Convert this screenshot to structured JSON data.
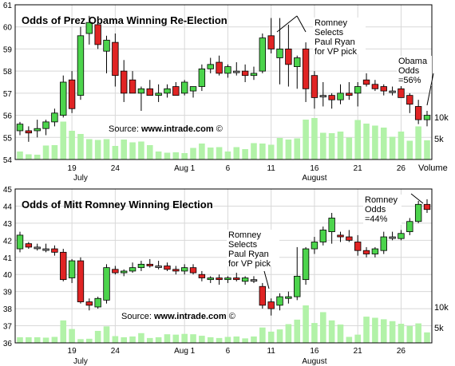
{
  "colors": {
    "up": "#4CD44C",
    "down": "#E02424",
    "neutral": "#9A9A9A",
    "volume": "#B2F2A8",
    "grid": "#D8D8D8",
    "frame": "#000000",
    "background": "#FFFFFF",
    "text": "#000000"
  },
  "chart_data": [
    {
      "type": "candlestick",
      "title": "Odds of Prez Obama Winning Re-Election",
      "source_label": "Source: ",
      "source_site": "www.intrade.com",
      "source_mark": "©",
      "ylim": [
        54,
        61
      ],
      "yticks": [
        54,
        55,
        56,
        57,
        58,
        59,
        60,
        61
      ],
      "xticks": [
        {
          "day": 19,
          "label": "19"
        },
        {
          "day": 24,
          "label": "24"
        },
        {
          "day": 32,
          "label": "Aug 1"
        },
        {
          "day": 37,
          "label": "6"
        },
        {
          "day": 42,
          "label": "11"
        },
        {
          "day": 47,
          "label": "16"
        },
        {
          "day": 52,
          "label": "21"
        },
        {
          "day": 57,
          "label": "26"
        }
      ],
      "month_labels": [
        {
          "day": 20,
          "label": "July"
        },
        {
          "day": 47,
          "label": "August"
        }
      ],
      "volume_axis_label": "Volume",
      "volume_ticks": [
        {
          "value": 10000,
          "label": "10k"
        },
        {
          "value": 5000,
          "label": "5k"
        }
      ],
      "annotations": [
        {
          "lines": [
            "Romney",
            "Selects",
            "Paul Ryan",
            "for VP pick"
          ],
          "target_day": 41
        },
        {
          "lines": [
            "Obama",
            "Odds",
            "=56%"
          ],
          "target_day": 57
        }
      ],
      "series": [
        {
          "day": 13,
          "open": 55.3,
          "high": 55.7,
          "low": 55.1,
          "close": 55.6,
          "volume": 2000
        },
        {
          "day": 14,
          "open": 55.3,
          "high": 55.5,
          "low": 54.8,
          "close": 55.2,
          "volume": 1300
        },
        {
          "day": 15,
          "open": 55.3,
          "high": 55.8,
          "low": 55.0,
          "close": 55.4,
          "volume": 1200
        },
        {
          "day": 16,
          "open": 55.4,
          "high": 55.8,
          "low": 55.1,
          "close": 55.7,
          "volume": 3500
        },
        {
          "day": 17,
          "open": 55.7,
          "high": 56.3,
          "low": 55.5,
          "close": 56.1,
          "volume": 3600
        },
        {
          "day": 18,
          "open": 56.0,
          "high": 57.8,
          "low": 55.9,
          "close": 57.5,
          "volume": 9500
        },
        {
          "day": 19,
          "open": 57.6,
          "high": 58.0,
          "low": 56.1,
          "close": 56.3,
          "volume": 7200
        },
        {
          "day": 20,
          "open": 56.9,
          "high": 60.0,
          "low": 56.7,
          "close": 59.6,
          "volume": 6400
        },
        {
          "day": 21,
          "open": 59.7,
          "high": 60.5,
          "low": 59.2,
          "close": 60.2,
          "volume": 5100
        },
        {
          "day": 22,
          "open": 60.1,
          "high": 60.4,
          "low": 59.0,
          "close": 59.2,
          "volume": 4900
        },
        {
          "day": 23,
          "open": 58.9,
          "high": 59.6,
          "low": 57.9,
          "close": 59.4,
          "volume": 5100
        },
        {
          "day": 24,
          "open": 59.3,
          "high": 59.7,
          "low": 57.3,
          "close": 57.8,
          "volume": 3400
        },
        {
          "day": 25,
          "open": 58.0,
          "high": 58.5,
          "low": 56.6,
          "close": 57.0,
          "volume": 5000
        },
        {
          "day": 26,
          "open": 57.6,
          "high": 58.0,
          "low": 57.0,
          "close": 57.0,
          "volume": 4300
        },
        {
          "day": 27,
          "open": 57.0,
          "high": 57.3,
          "low": 56.2,
          "close": 57.2,
          "volume": 4500
        },
        {
          "day": 28,
          "open": 57.2,
          "high": 57.6,
          "low": 56.9,
          "close": 56.9,
          "volume": 3600
        },
        {
          "day": 29,
          "open": 56.9,
          "high": 57.4,
          "low": 56.6,
          "close": 57.0,
          "volume": 2000
        },
        {
          "day": 30,
          "open": 57.0,
          "high": 57.4,
          "low": 56.8,
          "close": 57.2,
          "volume": 1700
        },
        {
          "day": 31,
          "open": 57.3,
          "high": 57.5,
          "low": 56.9,
          "close": 56.9,
          "volume": 1800
        },
        {
          "day": 32,
          "open": 57.0,
          "high": 57.6,
          "low": 56.9,
          "close": 57.5,
          "volume": 1600
        },
        {
          "day": 33,
          "open": 57.1,
          "high": 57.3,
          "low": 56.8,
          "close": 57.3,
          "volume": 2900
        },
        {
          "day": 34,
          "open": 57.3,
          "high": 58.3,
          "low": 57.1,
          "close": 58.1,
          "volume": 4000
        },
        {
          "day": 35,
          "open": 58.1,
          "high": 58.6,
          "low": 57.9,
          "close": 58.3,
          "volume": 3000
        },
        {
          "day": 36,
          "open": 58.4,
          "high": 58.7,
          "low": 57.8,
          "close": 57.9,
          "volume": 3100
        },
        {
          "day": 37,
          "open": 57.9,
          "high": 58.3,
          "low": 57.7,
          "close": 58.2,
          "volume": 2000
        },
        {
          "day": 38,
          "open": 58.0,
          "high": 58.4,
          "low": 57.8,
          "close": 58.0,
          "volume": 3100
        },
        {
          "day": 39,
          "open": 58.0,
          "high": 58.3,
          "low": 57.5,
          "close": 57.8,
          "volume": 2600
        },
        {
          "day": 40,
          "open": 57.8,
          "high": 58.2,
          "low": 57.6,
          "close": 57.9,
          "volume": 4100
        },
        {
          "day": 41,
          "open": 58.0,
          "high": 59.7,
          "low": 57.9,
          "close": 59.5,
          "volume": 4000
        },
        {
          "day": 42,
          "open": 59.6,
          "high": 60.4,
          "low": 58.8,
          "close": 59.0,
          "volume": 3700
        },
        {
          "day": 43,
          "open": 58.6,
          "high": 60.4,
          "low": 57.4,
          "close": 59.0,
          "volume": 5400
        },
        {
          "day": 44,
          "open": 59.0,
          "high": 60.1,
          "low": 57.3,
          "close": 58.3,
          "volume": 5000
        },
        {
          "day": 45,
          "open": 58.2,
          "high": 58.7,
          "low": 57.2,
          "close": 58.6,
          "volume": 5300
        },
        {
          "day": 46,
          "open": 59.0,
          "high": 59.3,
          "low": 56.6,
          "close": 57.2,
          "volume": 10000
        },
        {
          "day": 47,
          "open": 57.8,
          "high": 58.0,
          "low": 56.3,
          "close": 56.8,
          "volume": 10400
        },
        {
          "day": 48,
          "open": 56.9,
          "high": 57.5,
          "low": 56.4,
          "close": 56.9,
          "volume": 6700
        },
        {
          "day": 49,
          "open": 56.9,
          "high": 57.0,
          "low": 56.3,
          "close": 56.7,
          "volume": 6600
        },
        {
          "day": 50,
          "open": 56.7,
          "high": 57.4,
          "low": 56.5,
          "close": 57.0,
          "volume": 7000
        },
        {
          "day": 51,
          "open": 57.0,
          "high": 57.5,
          "low": 56.7,
          "close": 56.9,
          "volume": 5500
        },
        {
          "day": 52,
          "open": 57.0,
          "high": 57.5,
          "low": 56.4,
          "close": 57.3,
          "volume": 9900
        },
        {
          "day": 53,
          "open": 57.6,
          "high": 57.9,
          "low": 57.3,
          "close": 57.4,
          "volume": 9000
        },
        {
          "day": 54,
          "open": 57.4,
          "high": 57.6,
          "low": 57.1,
          "close": 57.2,
          "volume": 8500
        },
        {
          "day": 55,
          "open": 57.3,
          "high": 57.4,
          "low": 56.9,
          "close": 57.1,
          "volume": 8000
        },
        {
          "day": 56,
          "open": 57.1,
          "high": 57.3,
          "low": 56.9,
          "close": 57.1,
          "volume": 5700
        },
        {
          "day": 57,
          "open": 57.2,
          "high": 57.4,
          "low": 56.8,
          "close": 56.8,
          "volume": 7000
        },
        {
          "day": 58,
          "open": 56.9,
          "high": 57.0,
          "low": 56.1,
          "close": 56.5,
          "volume": 4700
        },
        {
          "day": 59,
          "open": 56.4,
          "high": 56.7,
          "low": 55.6,
          "close": 55.8,
          "volume": 8300
        },
        {
          "day": 60,
          "open": 55.8,
          "high": 56.2,
          "low": 55.5,
          "close": 56.0,
          "volume": 4800
        }
      ]
    },
    {
      "type": "candlestick",
      "title": "Odds of Mitt Romney Winning Election",
      "source_label": "Source: ",
      "source_site": "www.intrade.com",
      "source_mark": "©",
      "ylim": [
        36,
        45
      ],
      "yticks": [
        36,
        37,
        38,
        39,
        40,
        41,
        42,
        43,
        44,
        45
      ],
      "xticks": [
        {
          "day": 19,
          "label": "19"
        },
        {
          "day": 24,
          "label": "24"
        },
        {
          "day": 32,
          "label": "Aug 1"
        },
        {
          "day": 37,
          "label": "6"
        },
        {
          "day": 42,
          "label": "11"
        },
        {
          "day": 47,
          "label": "16"
        },
        {
          "day": 52,
          "label": "21"
        },
        {
          "day": 57,
          "label": "26"
        }
      ],
      "month_labels": [
        {
          "day": 20,
          "label": "July"
        },
        {
          "day": 47,
          "label": "August"
        }
      ],
      "volume_ticks": [
        {
          "value": 10000,
          "label": "10k"
        },
        {
          "value": 5000,
          "label": "5k"
        }
      ],
      "annotations": [
        {
          "lines": [
            "Romney",
            "Selects",
            "Paul Ryan",
            "for VP pick"
          ],
          "target_day": 41
        },
        {
          "lines": [
            "Romney",
            "Odds",
            "=44%"
          ],
          "target_day": 59
        }
      ],
      "series": [
        {
          "day": 13,
          "open": 41.5,
          "high": 42.5,
          "low": 41.3,
          "close": 42.3,
          "volume": 1500
        },
        {
          "day": 14,
          "open": 41.8,
          "high": 41.9,
          "low": 41.5,
          "close": 41.6,
          "volume": 1500
        },
        {
          "day": 15,
          "open": 41.6,
          "high": 41.8,
          "low": 41.4,
          "close": 41.6,
          "volume": 1500
        },
        {
          "day": 16,
          "open": 41.5,
          "high": 41.8,
          "low": 41.3,
          "close": 41.5,
          "volume": 1400
        },
        {
          "day": 17,
          "open": 41.5,
          "high": 41.7,
          "low": 41.1,
          "close": 41.3,
          "volume": 1600
        },
        {
          "day": 18,
          "open": 41.3,
          "high": 41.5,
          "low": 39.6,
          "close": 39.7,
          "volume": 6000
        },
        {
          "day": 19,
          "open": 39.8,
          "high": 40.9,
          "low": 39.5,
          "close": 40.8,
          "volume": 3700
        },
        {
          "day": 20,
          "open": 40.8,
          "high": 41.0,
          "low": 38.3,
          "close": 38.4,
          "volume": 1000
        },
        {
          "day": 21,
          "open": 38.4,
          "high": 38.6,
          "low": 37.9,
          "close": 38.2,
          "volume": 1100
        },
        {
          "day": 22,
          "open": 38.1,
          "high": 38.7,
          "low": 38.0,
          "close": 38.6,
          "volume": 3200
        },
        {
          "day": 23,
          "open": 38.5,
          "high": 40.6,
          "low": 38.3,
          "close": 40.4,
          "volume": 4400
        },
        {
          "day": 24,
          "open": 40.3,
          "high": 40.5,
          "low": 40.0,
          "close": 40.1,
          "volume": 1800
        },
        {
          "day": 25,
          "open": 40.1,
          "high": 40.3,
          "low": 39.9,
          "close": 40.2,
          "volume": 1500
        },
        {
          "day": 26,
          "open": 40.2,
          "high": 40.7,
          "low": 40.1,
          "close": 40.4,
          "volume": 1700
        },
        {
          "day": 27,
          "open": 40.4,
          "high": 40.8,
          "low": 40.2,
          "close": 40.6,
          "volume": 2600
        },
        {
          "day": 28,
          "open": 40.6,
          "high": 40.9,
          "low": 40.4,
          "close": 40.5,
          "volume": 1300
        },
        {
          "day": 29,
          "open": 40.5,
          "high": 40.8,
          "low": 40.3,
          "close": 40.5,
          "volume": 1500
        },
        {
          "day": 30,
          "open": 40.5,
          "high": 40.7,
          "low": 40.2,
          "close": 40.3,
          "volume": 2300
        },
        {
          "day": 31,
          "open": 40.3,
          "high": 40.5,
          "low": 40.0,
          "close": 40.2,
          "volume": 2200
        },
        {
          "day": 32,
          "open": 40.2,
          "high": 40.6,
          "low": 40.0,
          "close": 40.4,
          "volume": 2400
        },
        {
          "day": 33,
          "open": 40.4,
          "high": 40.6,
          "low": 40.0,
          "close": 40.1,
          "volume": 2300
        },
        {
          "day": 34,
          "open": 40.0,
          "high": 40.2,
          "low": 39.6,
          "close": 39.8,
          "volume": 1900
        },
        {
          "day": 35,
          "open": 39.7,
          "high": 39.9,
          "low": 39.5,
          "close": 39.8,
          "volume": 1500
        },
        {
          "day": 36,
          "open": 39.8,
          "high": 40.0,
          "low": 39.4,
          "close": 39.7,
          "volume": 1300
        },
        {
          "day": 37,
          "open": 39.7,
          "high": 39.9,
          "low": 39.5,
          "close": 39.8,
          "volume": 1600
        },
        {
          "day": 38,
          "open": 39.8,
          "high": 40.1,
          "low": 39.6,
          "close": 39.7,
          "volume": 1700
        },
        {
          "day": 39,
          "open": 39.6,
          "high": 39.9,
          "low": 39.4,
          "close": 39.8,
          "volume": 1200
        },
        {
          "day": 40,
          "open": 39.7,
          "high": 39.9,
          "low": 39.5,
          "close": 39.7,
          "volume": 1700
        },
        {
          "day": 41,
          "open": 39.3,
          "high": 39.5,
          "low": 38.0,
          "close": 38.2,
          "volume": 4100
        },
        {
          "day": 42,
          "open": 38.4,
          "high": 38.6,
          "low": 37.6,
          "close": 38.0,
          "volume": 3000
        },
        {
          "day": 43,
          "open": 38.2,
          "high": 38.9,
          "low": 37.9,
          "close": 38.7,
          "volume": 3600
        },
        {
          "day": 44,
          "open": 38.6,
          "high": 39.0,
          "low": 38.3,
          "close": 38.7,
          "volume": 5000
        },
        {
          "day": 45,
          "open": 38.7,
          "high": 41.6,
          "low": 38.5,
          "close": 39.9,
          "volume": 6200
        },
        {
          "day": 46,
          "open": 39.7,
          "high": 41.6,
          "low": 39.4,
          "close": 41.5,
          "volume": 10000
        },
        {
          "day": 47,
          "open": 41.5,
          "high": 42.2,
          "low": 41.2,
          "close": 41.9,
          "volume": 5300
        },
        {
          "day": 48,
          "open": 41.9,
          "high": 42.8,
          "low": 41.7,
          "close": 42.6,
          "volume": 8200
        },
        {
          "day": 49,
          "open": 42.5,
          "high": 43.6,
          "low": 41.8,
          "close": 43.3,
          "volume": 6000
        },
        {
          "day": 50,
          "open": 42.3,
          "high": 42.5,
          "low": 41.9,
          "close": 42.2,
          "volume": 4900
        },
        {
          "day": 51,
          "open": 42.2,
          "high": 42.6,
          "low": 41.9,
          "close": 42.0,
          "volume": 1600
        },
        {
          "day": 52,
          "open": 41.9,
          "high": 42.3,
          "low": 41.1,
          "close": 41.4,
          "volume": 2200
        },
        {
          "day": 53,
          "open": 41.4,
          "high": 41.6,
          "low": 41.0,
          "close": 41.2,
          "volume": 7000
        },
        {
          "day": 54,
          "open": 41.2,
          "high": 41.6,
          "low": 41.0,
          "close": 41.5,
          "volume": 6700
        },
        {
          "day": 55,
          "open": 41.4,
          "high": 42.5,
          "low": 41.2,
          "close": 42.2,
          "volume": 6300
        },
        {
          "day": 56,
          "open": 42.2,
          "high": 42.5,
          "low": 42.0,
          "close": 42.2,
          "volume": 5800
        },
        {
          "day": 57,
          "open": 42.1,
          "high": 42.6,
          "low": 42.0,
          "close": 42.4,
          "volume": 5100
        },
        {
          "day": 58,
          "open": 42.5,
          "high": 43.3,
          "low": 42.3,
          "close": 43.1,
          "volume": 4500
        },
        {
          "day": 59,
          "open": 43.1,
          "high": 44.3,
          "low": 43.0,
          "close": 44.1,
          "volume": 5200
        },
        {
          "day": 60,
          "open": 44.1,
          "high": 44.4,
          "low": 43.6,
          "close": 43.8,
          "volume": 2800
        }
      ]
    }
  ]
}
